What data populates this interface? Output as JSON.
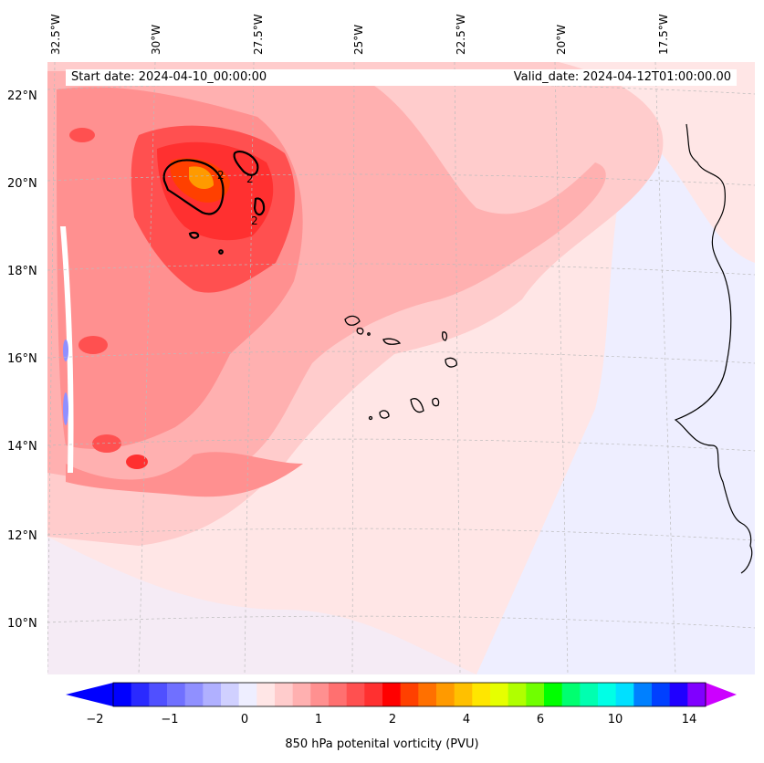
{
  "map": {
    "start_date_label": "Start date: 2024-04-10_00:00:00",
    "valid_date_label": "Valid_date: 2024-04-12T01:00:00.00",
    "longitude_labels": [
      "32.5°W",
      "30°W",
      "27.5°W",
      "25°W",
      "22.5°W",
      "20°W",
      "17.5°W"
    ],
    "latitude_labels": [
      "22°N",
      "20°N",
      "18°N",
      "16°N",
      "14°N",
      "12°N",
      "10°N"
    ],
    "contour_labels": [
      "2",
      "2",
      "2"
    ],
    "colors": {
      "background_field": "#ffe6e6",
      "coast": "#000000",
      "gridline": "#bbbbbb"
    }
  },
  "colorbar": {
    "label": "850 hPa potenital vorticity (PVU)",
    "ticks": [
      "−2",
      "−1",
      "0",
      "1",
      "2",
      "4",
      "6",
      "10",
      "14"
    ],
    "colors": [
      "#0000ff",
      "#2a2aff",
      "#5050ff",
      "#7070ff",
      "#9090ff",
      "#b0b0ff",
      "#d0d0ff",
      "#eeeeff",
      "#ffe6e6",
      "#ffcccc",
      "#ffb0b0",
      "#ff9090",
      "#ff7070",
      "#ff5050",
      "#ff3030",
      "#ff0000",
      "#ff4000",
      "#ff7000",
      "#ff9a00",
      "#ffc000",
      "#ffe600",
      "#e6ff00",
      "#b0ff00",
      "#70ff00",
      "#00ff00",
      "#00ff70",
      "#00ffb0",
      "#00ffe6",
      "#00e0ff",
      "#0080ff",
      "#0040ff",
      "#2000ff",
      "#8000ff"
    ],
    "min_arrow_color": "#0000ff",
    "max_arrow_color": "#cc00ff"
  }
}
